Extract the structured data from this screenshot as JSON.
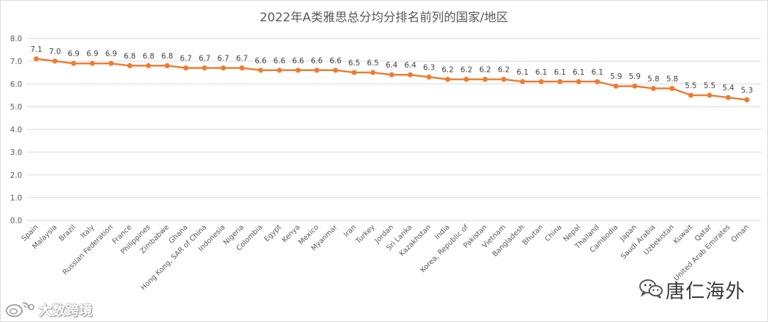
{
  "chart_data": {
    "type": "line",
    "title": "2022年A类雅思总分均分排名前列的国家/地区",
    "categories": [
      "Spain",
      "Malaysia",
      "Brazil",
      "Italy",
      "Russian Federation",
      "France",
      "Philippines",
      "Zimbabwe",
      "Ghana",
      "Hong Kong, SAR of China",
      "Indonesia",
      "Nigeria",
      "Colombia",
      "Egypt",
      "Kenya",
      "Mexico",
      "Myanmar",
      "Iran",
      "Turkey",
      "Jordan",
      "Sri Lanka",
      "Kazakhstan",
      "India",
      "Korea, Republic of",
      "Pakistan",
      "Vietnam",
      "Bangladesh",
      "Bhutan",
      "China",
      "Nepal",
      "Thailand",
      "Cambodia",
      "Japan",
      "Saudi Arabia",
      "Uzbekistan",
      "Kuwait",
      "Qatar",
      "United Arab Emirates",
      "Oman"
    ],
    "values": [
      7.1,
      7.0,
      6.9,
      6.9,
      6.9,
      6.8,
      6.8,
      6.8,
      6.7,
      6.7,
      6.7,
      6.7,
      6.6,
      6.6,
      6.6,
      6.6,
      6.6,
      6.5,
      6.5,
      6.4,
      6.4,
      6.3,
      6.2,
      6.2,
      6.2,
      6.2,
      6.1,
      6.1,
      6.1,
      6.1,
      6.1,
      5.9,
      5.9,
      5.8,
      5.8,
      5.5,
      5.5,
      5.4,
      5.3
    ],
    "data_labels": [
      "7.1",
      "7.0",
      "6.9",
      "6.9",
      "6.9",
      "6.8",
      "6.8",
      "6.8",
      "6.7",
      "6.7",
      "6.7",
      "6.7",
      "6.6",
      "6.6",
      "6.6",
      "6.6",
      "6.6",
      "6.5",
      "6.5",
      "6.4",
      "6.4",
      "6.3",
      "6.2",
      "6.2",
      "6.2",
      "6.2",
      "6.1",
      "6.1",
      "6.1",
      "6.1",
      "6.1",
      "5.9",
      "5.9",
      "5.8",
      "5.8",
      "5.5",
      "5.5",
      "5.4",
      "5.3"
    ],
    "yticks": [
      "0.0",
      "1.0",
      "2.0",
      "3.0",
      "4.0",
      "5.0",
      "6.0",
      "7.0",
      "8.0"
    ],
    "ylim": [
      0,
      8
    ],
    "grid": true,
    "legend": "none",
    "line_color": "#ed7d31"
  },
  "watermarks": {
    "right_text": "唐仁海外",
    "left_text": "大数跨境",
    "right_icon": "wechat-icon",
    "left_icon": "weibo-icon"
  }
}
